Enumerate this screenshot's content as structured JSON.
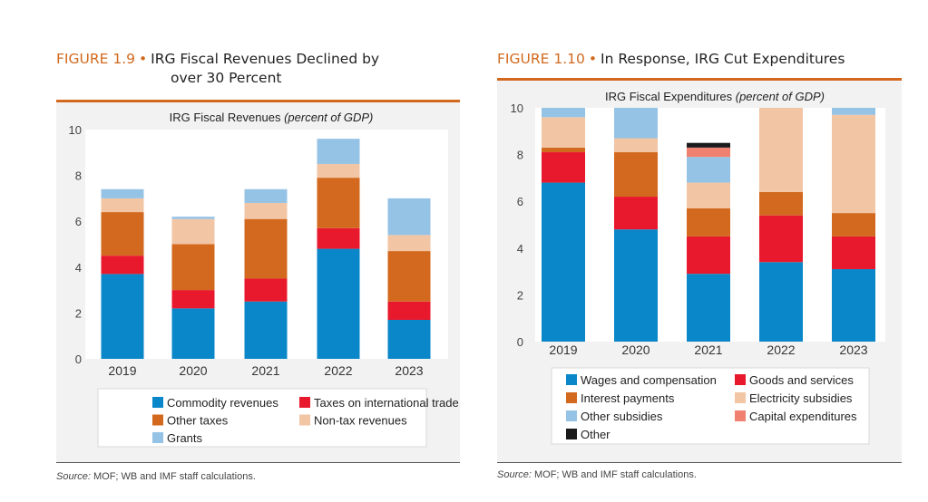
{
  "figures": [
    {
      "number": "FIGURE 1.9",
      "title_lines": [
        "IRG Fiscal Revenues Declined by",
        "over 30 Percent"
      ],
      "chart_title": "IRG Fiscal Revenues",
      "chart_title_unit": "(percent of GDP)",
      "source_label": "Source:",
      "source_text": "MOF; WB and IMF staff calculations.",
      "legend": [
        {
          "name": "Commodity revenues",
          "color": "#0a87c9"
        },
        {
          "name": "Taxes on international trade",
          "color": "#e8192c"
        },
        {
          "name": "Other taxes",
          "color": "#d2691e"
        },
        {
          "name": "Non-tax revenues",
          "color": "#f2c5a5"
        },
        {
          "name": "Grants",
          "color": "#95c3e6"
        }
      ]
    },
    {
      "number": "FIGURE 1.10",
      "title_lines": [
        "In Response, IRG Cut Expenditures"
      ],
      "chart_title": "IRG Fiscal Expenditures",
      "chart_title_unit": "(percent of GDP)",
      "source_label": "Source:",
      "source_text": "MOF; WB and IMF staff calculations.",
      "legend": [
        {
          "name": "Wages and compensation",
          "color": "#0a87c9"
        },
        {
          "name": "Goods and services",
          "color": "#e8192c"
        },
        {
          "name": "Interest payments",
          "color": "#d2691e"
        },
        {
          "name": "Electricity subsidies",
          "color": "#f2c5a5"
        },
        {
          "name": "Other subsidies",
          "color": "#95c3e6"
        },
        {
          "name": "Capital expenditures",
          "color": "#f08070"
        },
        {
          "name": "Other",
          "color": "#1a1a1a"
        }
      ]
    }
  ],
  "chart_data": [
    {
      "type": "bar",
      "stacked": true,
      "title": "IRG Fiscal Revenues (percent of GDP)",
      "categories": [
        "2019",
        "2020",
        "2021",
        "2022",
        "2023"
      ],
      "ylim": [
        0,
        10
      ],
      "yticks": [
        0,
        2,
        4,
        6,
        8,
        10
      ],
      "grid": false,
      "legend_position": "bottom",
      "series": [
        {
          "name": "Commodity revenues",
          "color": "#0a87c9",
          "values": [
            3.7,
            2.2,
            2.5,
            4.8,
            1.7
          ]
        },
        {
          "name": "Taxes on international trade",
          "color": "#e8192c",
          "values": [
            0.8,
            0.8,
            1.0,
            0.9,
            0.8
          ]
        },
        {
          "name": "Other taxes",
          "color": "#d2691e",
          "values": [
            1.9,
            2.0,
            2.6,
            2.2,
            2.2
          ]
        },
        {
          "name": "Non-tax revenues",
          "color": "#f2c5a5",
          "values": [
            0.6,
            1.1,
            0.7,
            0.6,
            0.7
          ]
        },
        {
          "name": "Grants",
          "color": "#95c3e6",
          "values": [
            0.4,
            0.1,
            0.6,
            1.1,
            1.6
          ]
        }
      ]
    },
    {
      "type": "bar",
      "stacked": true,
      "title": "IRG Fiscal Expenditures (percent of GDP)",
      "categories": [
        "2019",
        "2020",
        "2021",
        "2022",
        "2023"
      ],
      "ylim": [
        0,
        10
      ],
      "yticks": [
        0,
        2,
        4,
        6,
        8,
        10
      ],
      "grid": false,
      "legend_position": "bottom",
      "series": [
        {
          "name": "Wages and compensation",
          "color": "#0a87c9",
          "values": [
            6.8,
            4.8,
            2.9,
            3.4,
            3.1
          ]
        },
        {
          "name": "Goods and services",
          "color": "#e8192c",
          "values": [
            1.3,
            1.4,
            1.6,
            2.0,
            1.4
          ]
        },
        {
          "name": "Interest payments",
          "color": "#d2691e",
          "values": [
            0.2,
            1.9,
            1.2,
            1.0,
            1.0
          ]
        },
        {
          "name": "Electricity subsidies",
          "color": "#f2c5a5",
          "values": [
            1.3,
            0.6,
            1.1,
            3.6,
            4.2
          ]
        },
        {
          "name": "Other subsidies",
          "color": "#95c3e6",
          "values": [
            0.5,
            1.5,
            1.1,
            0.0,
            0.5
          ]
        },
        {
          "name": "Capital expenditures",
          "color": "#f08070",
          "values": [
            0.0,
            0.0,
            0.4,
            0.0,
            0.0
          ]
        },
        {
          "name": "Other",
          "color": "#1a1a1a",
          "values": [
            0.0,
            0.0,
            0.2,
            0.0,
            0.0
          ]
        }
      ]
    }
  ]
}
